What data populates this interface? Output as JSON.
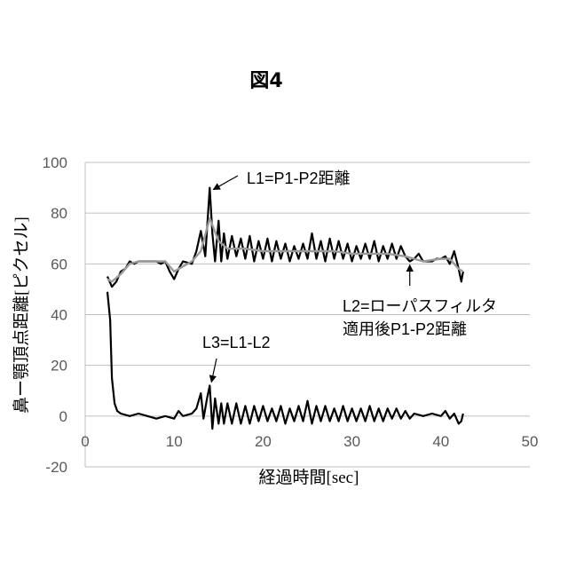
{
  "figure_title": "図4",
  "chart_data": {
    "type": "line",
    "ylabel": "鼻ー顎頂点距離[ピクセル]",
    "xlabel": "経過時間[sec]",
    "xlim": [
      0,
      50
    ],
    "ylim": [
      -20,
      100
    ],
    "x_ticks": [
      0,
      10,
      20,
      30,
      40,
      50
    ],
    "y_ticks": [
      100,
      80,
      60,
      40,
      20,
      0,
      -20
    ],
    "grid": "horizontal",
    "annotations": [
      {
        "label": "L1=P1-P2距離",
        "arrow_to": [
          14,
          90
        ]
      },
      {
        "label_lines": [
          "L2=ローパスフィルタ",
          "適用後P1-P2距離"
        ],
        "arrow_to": [
          36.5,
          61
        ]
      },
      {
        "label": "L3=L1-L2",
        "arrow_to": [
          14,
          12
        ]
      }
    ],
    "series": [
      {
        "name": "L1",
        "color": "#000000",
        "style": "solid",
        "values": [
          [
            2.5,
            55
          ],
          [
            3,
            51
          ],
          [
            3.5,
            53
          ],
          [
            4,
            57
          ],
          [
            4.5,
            58
          ],
          [
            5,
            61
          ],
          [
            5.5,
            60
          ],
          [
            6,
            61
          ],
          [
            7,
            61
          ],
          [
            8,
            61
          ],
          [
            8.5,
            60
          ],
          [
            9,
            61
          ],
          [
            9.5,
            57
          ],
          [
            10,
            54
          ],
          [
            10.5,
            58
          ],
          [
            11,
            61
          ],
          [
            12,
            60
          ],
          [
            12.5,
            65
          ],
          [
            13,
            73
          ],
          [
            13.5,
            63
          ],
          [
            14,
            90
          ],
          [
            14.3,
            72
          ],
          [
            14.6,
            61
          ],
          [
            15,
            77
          ],
          [
            15.3,
            61
          ],
          [
            15.6,
            72
          ],
          [
            16,
            62
          ],
          [
            16.5,
            71
          ],
          [
            17,
            63
          ],
          [
            17.5,
            70
          ],
          [
            18,
            62
          ],
          [
            18.5,
            71
          ],
          [
            19,
            61
          ],
          [
            19.5,
            69
          ],
          [
            20,
            62
          ],
          [
            20.5,
            70
          ],
          [
            21,
            61
          ],
          [
            21.5,
            69
          ],
          [
            22,
            62
          ],
          [
            22.5,
            68
          ],
          [
            23,
            61
          ],
          [
            23.5,
            67
          ],
          [
            24,
            62
          ],
          [
            24.5,
            68
          ],
          [
            25,
            62
          ],
          [
            25.5,
            72
          ],
          [
            26,
            62
          ],
          [
            26.5,
            69
          ],
          [
            27,
            61
          ],
          [
            27.5,
            70
          ],
          [
            28,
            62
          ],
          [
            28.5,
            69
          ],
          [
            29,
            62
          ],
          [
            29.5,
            68
          ],
          [
            30,
            61
          ],
          [
            30.5,
            67
          ],
          [
            31,
            62
          ],
          [
            31.5,
            68
          ],
          [
            32,
            62
          ],
          [
            32.5,
            69
          ],
          [
            33,
            61
          ],
          [
            33.5,
            67
          ],
          [
            34,
            62
          ],
          [
            34.5,
            68
          ],
          [
            35,
            62
          ],
          [
            35.5,
            67
          ],
          [
            36,
            63
          ],
          [
            36.5,
            61
          ],
          [
            37,
            62
          ],
          [
            37.5,
            64
          ],
          [
            38,
            61
          ],
          [
            39,
            61
          ],
          [
            39.5,
            62
          ],
          [
            40,
            62
          ],
          [
            40.5,
            63
          ],
          [
            41,
            60
          ],
          [
            41.5,
            65
          ],
          [
            42,
            58
          ],
          [
            42.3,
            53
          ],
          [
            42.5,
            57
          ]
        ]
      },
      {
        "name": "L2",
        "color": "#9a9a9a",
        "style": "solid",
        "values": [
          [
            2.5,
            54
          ],
          [
            3,
            53
          ],
          [
            4,
            56
          ],
          [
            5,
            60
          ],
          [
            6,
            61
          ],
          [
            8,
            61
          ],
          [
            9,
            61
          ],
          [
            10,
            57
          ],
          [
            11,
            59
          ],
          [
            12,
            61
          ],
          [
            13,
            65
          ],
          [
            14,
            78
          ],
          [
            15,
            69
          ],
          [
            16,
            66
          ],
          [
            18,
            66
          ],
          [
            20,
            65
          ],
          [
            22,
            65
          ],
          [
            24,
            65
          ],
          [
            26,
            65
          ],
          [
            28,
            65
          ],
          [
            30,
            64
          ],
          [
            32,
            64
          ],
          [
            34,
            64
          ],
          [
            36,
            63
          ],
          [
            37,
            62
          ],
          [
            38,
            61
          ],
          [
            40,
            62
          ],
          [
            41,
            62
          ],
          [
            42,
            58
          ],
          [
            42.5,
            57
          ]
        ]
      },
      {
        "name": "L3",
        "color": "#000000",
        "style": "solid",
        "values": [
          [
            2.5,
            49
          ],
          [
            2.8,
            38
          ],
          [
            3,
            15
          ],
          [
            3.3,
            5
          ],
          [
            3.6,
            2
          ],
          [
            4,
            1
          ],
          [
            5,
            0
          ],
          [
            6,
            1
          ],
          [
            7,
            0
          ],
          [
            8,
            -1
          ],
          [
            9,
            0
          ],
          [
            10,
            -1
          ],
          [
            10.5,
            2
          ],
          [
            11,
            0
          ],
          [
            12,
            1
          ],
          [
            12.5,
            3
          ],
          [
            13,
            9
          ],
          [
            13.3,
            -1
          ],
          [
            13.7,
            7
          ],
          [
            14,
            12
          ],
          [
            14.3,
            -5
          ],
          [
            14.6,
            7
          ],
          [
            15,
            -3
          ],
          [
            15.3,
            5
          ],
          [
            15.6,
            -3
          ],
          [
            16,
            5
          ],
          [
            16.5,
            -3
          ],
          [
            17,
            5
          ],
          [
            17.5,
            -3
          ],
          [
            18,
            4
          ],
          [
            18.5,
            -3
          ],
          [
            19,
            4
          ],
          [
            19.5,
            -2
          ],
          [
            20,
            4
          ],
          [
            20.5,
            -2
          ],
          [
            21,
            3
          ],
          [
            21.5,
            -2
          ],
          [
            22,
            4
          ],
          [
            22.5,
            -3
          ],
          [
            23,
            3
          ],
          [
            23.5,
            -2
          ],
          [
            24,
            4
          ],
          [
            24.5,
            -2
          ],
          [
            25,
            6
          ],
          [
            25.5,
            -3
          ],
          [
            26,
            4
          ],
          [
            26.5,
            -2
          ],
          [
            27,
            4
          ],
          [
            27.5,
            -2
          ],
          [
            28,
            3
          ],
          [
            28.5,
            -2
          ],
          [
            29,
            4
          ],
          [
            29.5,
            -2
          ],
          [
            30,
            3
          ],
          [
            30.5,
            -2
          ],
          [
            31,
            3
          ],
          [
            31.5,
            -2
          ],
          [
            32,
            4
          ],
          [
            32.5,
            -2
          ],
          [
            33,
            3
          ],
          [
            33.5,
            -2
          ],
          [
            34,
            3
          ],
          [
            34.5,
            -1
          ],
          [
            35,
            3
          ],
          [
            35.5,
            -1
          ],
          [
            36,
            2
          ],
          [
            36.5,
            -1
          ],
          [
            37,
            1
          ],
          [
            38,
            0
          ],
          [
            39,
            1
          ],
          [
            40,
            0
          ],
          [
            40.5,
            2
          ],
          [
            41,
            -1
          ],
          [
            41.5,
            1
          ],
          [
            42,
            -3
          ],
          [
            42.3,
            -2
          ],
          [
            42.5,
            1
          ]
        ]
      }
    ]
  }
}
